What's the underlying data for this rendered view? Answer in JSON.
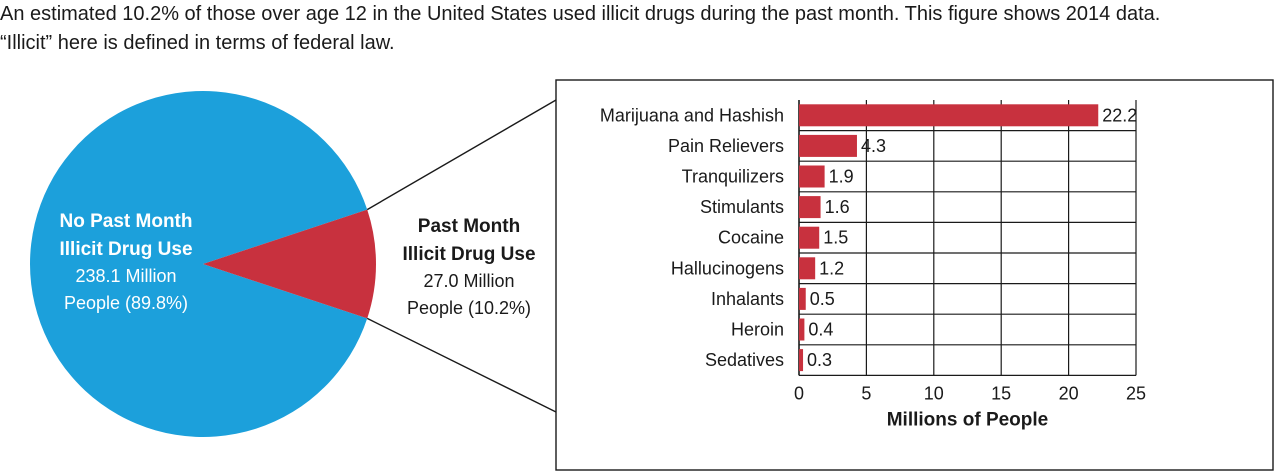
{
  "caption": "An estimated 10.2% of those over age 12 in the United States used illicit drugs during the past month. This figure shows 2014 data.\n“Illicit” here is defined in terms of federal law.",
  "colors": {
    "pie_blue": "#1ca0db",
    "bar_red": "#c8313e",
    "text": "#1a1a1a",
    "white": "#ffffff"
  },
  "chart_data": [
    {
      "type": "pie",
      "slices": [
        {
          "name": "No Past Month Illicit Drug Use",
          "title_lines": [
            "No Past Month",
            "Illicit Drug Use"
          ],
          "detail_lines": [
            "238.1 Million",
            "People (89.8%)"
          ],
          "value": 238.1,
          "percent": 89.8
        },
        {
          "name": "Past Month Illicit Drug Use",
          "title_lines": [
            "Past Month",
            "Illicit Drug Use"
          ],
          "detail_lines": [
            "27.0 Million",
            "People (10.2%)"
          ],
          "value": 27.0,
          "percent": 10.2
        }
      ]
    },
    {
      "type": "bar",
      "orientation": "horizontal",
      "categories": [
        "Marijuana and Hashish",
        "Pain Relievers",
        "Tranquilizers",
        "Stimulants",
        "Cocaine",
        "Hallucinogens",
        "Inhalants",
        "Heroin",
        "Sedatives"
      ],
      "values": [
        22.2,
        4.3,
        1.9,
        1.6,
        1.5,
        1.2,
        0.5,
        0.4,
        0.3
      ],
      "value_labels": [
        "22.2",
        "4.3",
        "1.9",
        "1.6",
        "1.5",
        "1.2",
        "0.5",
        "0.4",
        "0.3"
      ],
      "xlabel": "Millions of People",
      "xlim": [
        0,
        25
      ],
      "xticks": [
        0,
        5,
        10,
        15,
        20,
        25
      ],
      "grid": true
    }
  ]
}
